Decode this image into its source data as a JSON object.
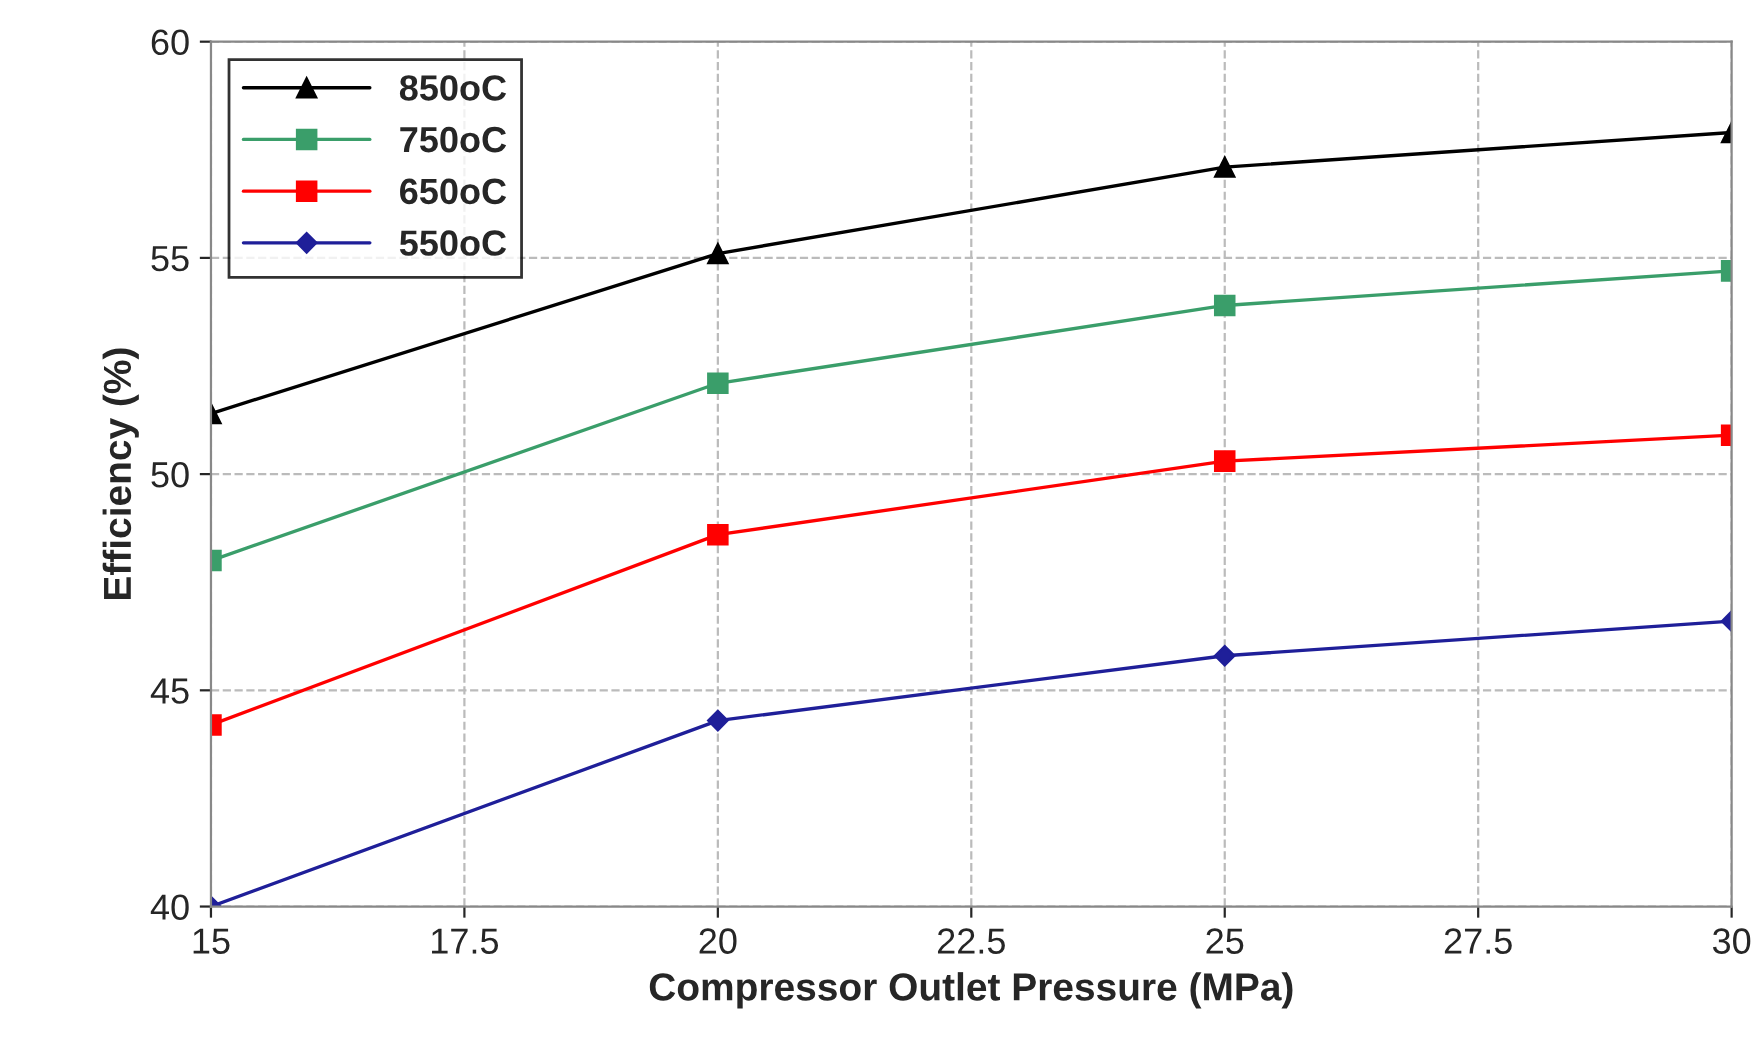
{
  "chart_data": {
    "type": "line",
    "xlabel": "Compressor Outlet Pressure (MPa)",
    "ylabel": "Efficiency (%)",
    "x": [
      15,
      20,
      25,
      30
    ],
    "series": [
      {
        "name": "850oC",
        "color": "#000000",
        "marker": "triangle",
        "values": [
          51.4,
          55.1,
          57.1,
          57.9
        ]
      },
      {
        "name": "750oC",
        "color": "#3a9e6a",
        "marker": "square",
        "values": [
          48.0,
          52.1,
          53.9,
          54.7
        ]
      },
      {
        "name": "650oC",
        "color": "#ff0000",
        "marker": "square",
        "values": [
          44.2,
          48.6,
          50.3,
          50.9
        ]
      },
      {
        "name": "550oC",
        "color": "#1f1f99",
        "marker": "diamond",
        "values": [
          40.0,
          44.3,
          45.8,
          46.6
        ]
      }
    ],
    "xlim": [
      15,
      30
    ],
    "xticks": [
      15,
      17.5,
      20,
      22.5,
      25,
      27.5,
      30
    ],
    "ylim": [
      40,
      60
    ],
    "yticks": [
      40,
      45,
      50,
      55,
      60
    ],
    "grid": true,
    "legend": "top left",
    "line_style": "solid"
  }
}
